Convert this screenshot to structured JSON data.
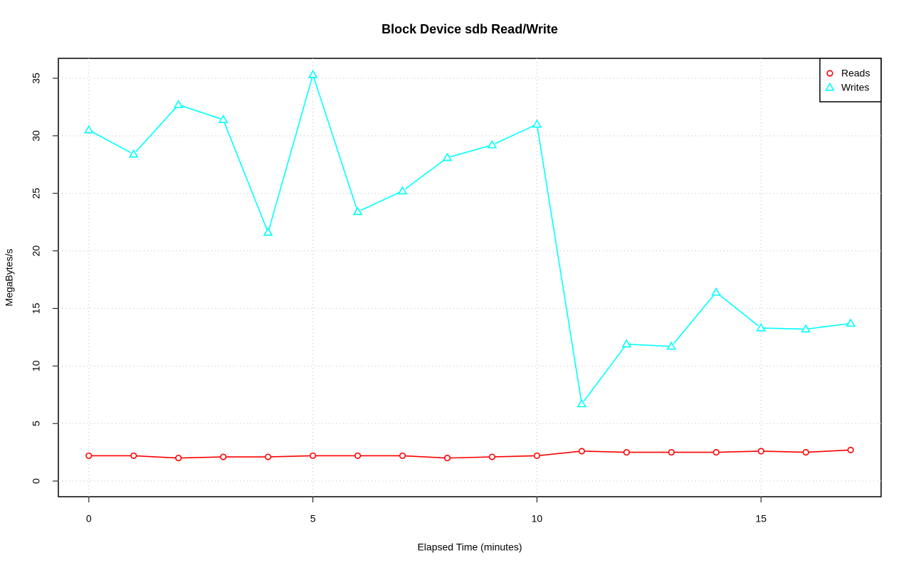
{
  "chart_data": {
    "type": "line",
    "title": "Block Device sdb Read/Write",
    "x_label": "Elapsed Time (minutes)",
    "y_label": "MegaBytes/s",
    "x": [
      0,
      1,
      2,
      3,
      4,
      5,
      6,
      7,
      8,
      9,
      10,
      11,
      12,
      13,
      14,
      15,
      16,
      17
    ],
    "series": [
      {
        "name": "Reads",
        "color": "#ff0000",
        "marker": "circle",
        "values": [
          2.2,
          2.2,
          2.0,
          2.1,
          2.1,
          2.2,
          2.2,
          2.2,
          2.0,
          2.1,
          2.2,
          2.6,
          2.5,
          2.5,
          2.5,
          2.6,
          2.5,
          2.7
        ]
      },
      {
        "name": "Writes",
        "color": "#00ffff",
        "marker": "triangle",
        "values": [
          30.5,
          28.4,
          32.7,
          31.4,
          21.6,
          35.3,
          23.4,
          25.2,
          28.1,
          29.2,
          31.0,
          6.7,
          11.9,
          11.7,
          16.4,
          13.3,
          13.2,
          13.7
        ]
      }
    ],
    "xlim": [
      -0.68,
      17.68
    ],
    "xticks": [
      0,
      5,
      10,
      15
    ],
    "ylim": [
      -1.36,
      36.73
    ],
    "yticks": [
      0,
      5,
      10,
      15,
      20,
      25,
      30,
      35
    ],
    "grid": true,
    "legend": "top-right"
  }
}
